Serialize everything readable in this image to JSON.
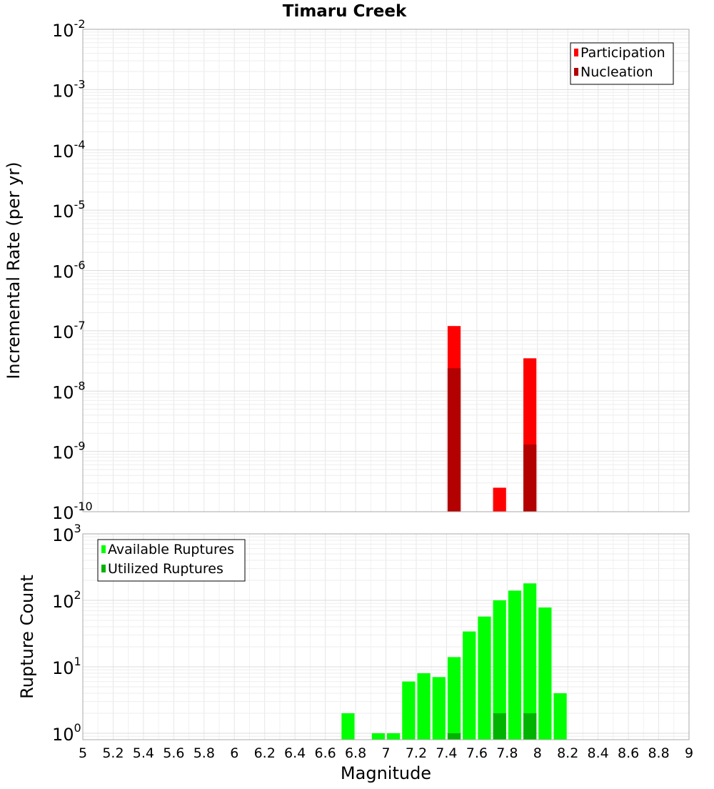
{
  "chart_data": [
    {
      "type": "bar",
      "title": "Timaru Creek",
      "xlabel": "",
      "ylabel": "Incremental Rate (per yr)",
      "yscale": "log",
      "ylim": [
        1e-10,
        0.01
      ],
      "xlim": [
        5,
        9
      ],
      "grid": true,
      "legend_position": "top-right",
      "legend": [
        {
          "name": "Participation",
          "color": "#ff0000"
        },
        {
          "name": "Nucleation",
          "color": "#b30000"
        }
      ],
      "y_ticks": [
        {
          "base": "10",
          "exp": "-2"
        },
        {
          "base": "10",
          "exp": "-3"
        },
        {
          "base": "10",
          "exp": "-4"
        },
        {
          "base": "10",
          "exp": "-5"
        },
        {
          "base": "10",
          "exp": "-6"
        },
        {
          "base": "10",
          "exp": "-7"
        },
        {
          "base": "10",
          "exp": "-8"
        },
        {
          "base": "10",
          "exp": "-9"
        },
        {
          "base": "10",
          "exp": "-10"
        }
      ],
      "series": [
        {
          "name": "Participation",
          "color": "#ff0000",
          "x": [
            7.45,
            7.75,
            7.95
          ],
          "values": [
            1.2e-07,
            2.5e-10,
            3.5e-08
          ]
        },
        {
          "name": "Nucleation",
          "color": "#b30000",
          "x": [
            7.45,
            7.95
          ],
          "values": [
            2.4e-08,
            1.3e-09
          ]
        }
      ]
    },
    {
      "type": "bar",
      "title": "",
      "xlabel": "Magnitude",
      "ylabel": "Rupture Count",
      "yscale": "log",
      "ylim": [
        0.8,
        1000
      ],
      "xlim": [
        5,
        9
      ],
      "grid": true,
      "legend_position": "top-left",
      "legend": [
        {
          "name": "Available Ruptures",
          "color": "#00ff00"
        },
        {
          "name": "Utilized Ruptures",
          "color": "#00b300"
        }
      ],
      "y_ticks": [
        {
          "base": "10",
          "exp": "3"
        },
        {
          "base": "10",
          "exp": "2"
        },
        {
          "base": "10",
          "exp": "1"
        },
        {
          "base": "10",
          "exp": "0"
        }
      ],
      "x_ticks": [
        "5",
        "5.2",
        "5.4",
        "5.6",
        "5.8",
        "6",
        "6.2",
        "6.4",
        "6.6",
        "6.8",
        "7",
        "7.2",
        "7.4",
        "7.6",
        "7.8",
        "8",
        "8.2",
        "8.4",
        "8.6",
        "8.8",
        "9"
      ],
      "series": [
        {
          "name": "Available Ruptures",
          "color": "#00ff00",
          "x": [
            6.75,
            6.95,
            7.05,
            7.15,
            7.25,
            7.35,
            7.45,
            7.55,
            7.65,
            7.75,
            7.85,
            7.95,
            8.05,
            8.15
          ],
          "values": [
            2,
            1,
            1,
            6,
            8,
            7,
            14,
            34,
            57,
            100,
            140,
            180,
            78,
            4
          ]
        },
        {
          "name": "Utilized Ruptures",
          "color": "#00b300",
          "x": [
            7.45,
            7.75,
            7.95
          ],
          "values": [
            1,
            2,
            2
          ]
        }
      ]
    }
  ]
}
